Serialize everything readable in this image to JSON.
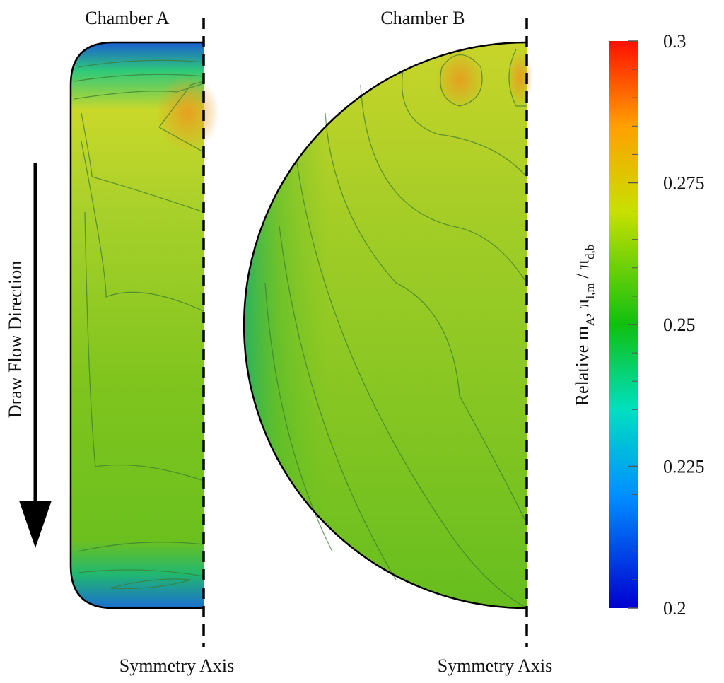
{
  "labels": {
    "chamber_a": "Chamber A",
    "chamber_b": "Chamber B",
    "axis_a": "Symmetry Axis",
    "axis_b": "Symmetry Axis",
    "flow": "Draw Flow Direction"
  },
  "colorbar": {
    "range": [
      0.2,
      0.3
    ],
    "ticks": [
      0.3,
      0.275,
      0.25,
      0.225,
      0.2
    ],
    "label": [
      {
        "text": "Relative m",
        "sub": false
      },
      {
        "text": "A",
        "sub": true
      },
      {
        "text": ", π",
        "sub": false
      },
      {
        "text": "i,m",
        "sub": true
      },
      {
        "text": " / π",
        "sub": false
      },
      {
        "text": "d,b",
        "sub": true
      }
    ]
  }
}
